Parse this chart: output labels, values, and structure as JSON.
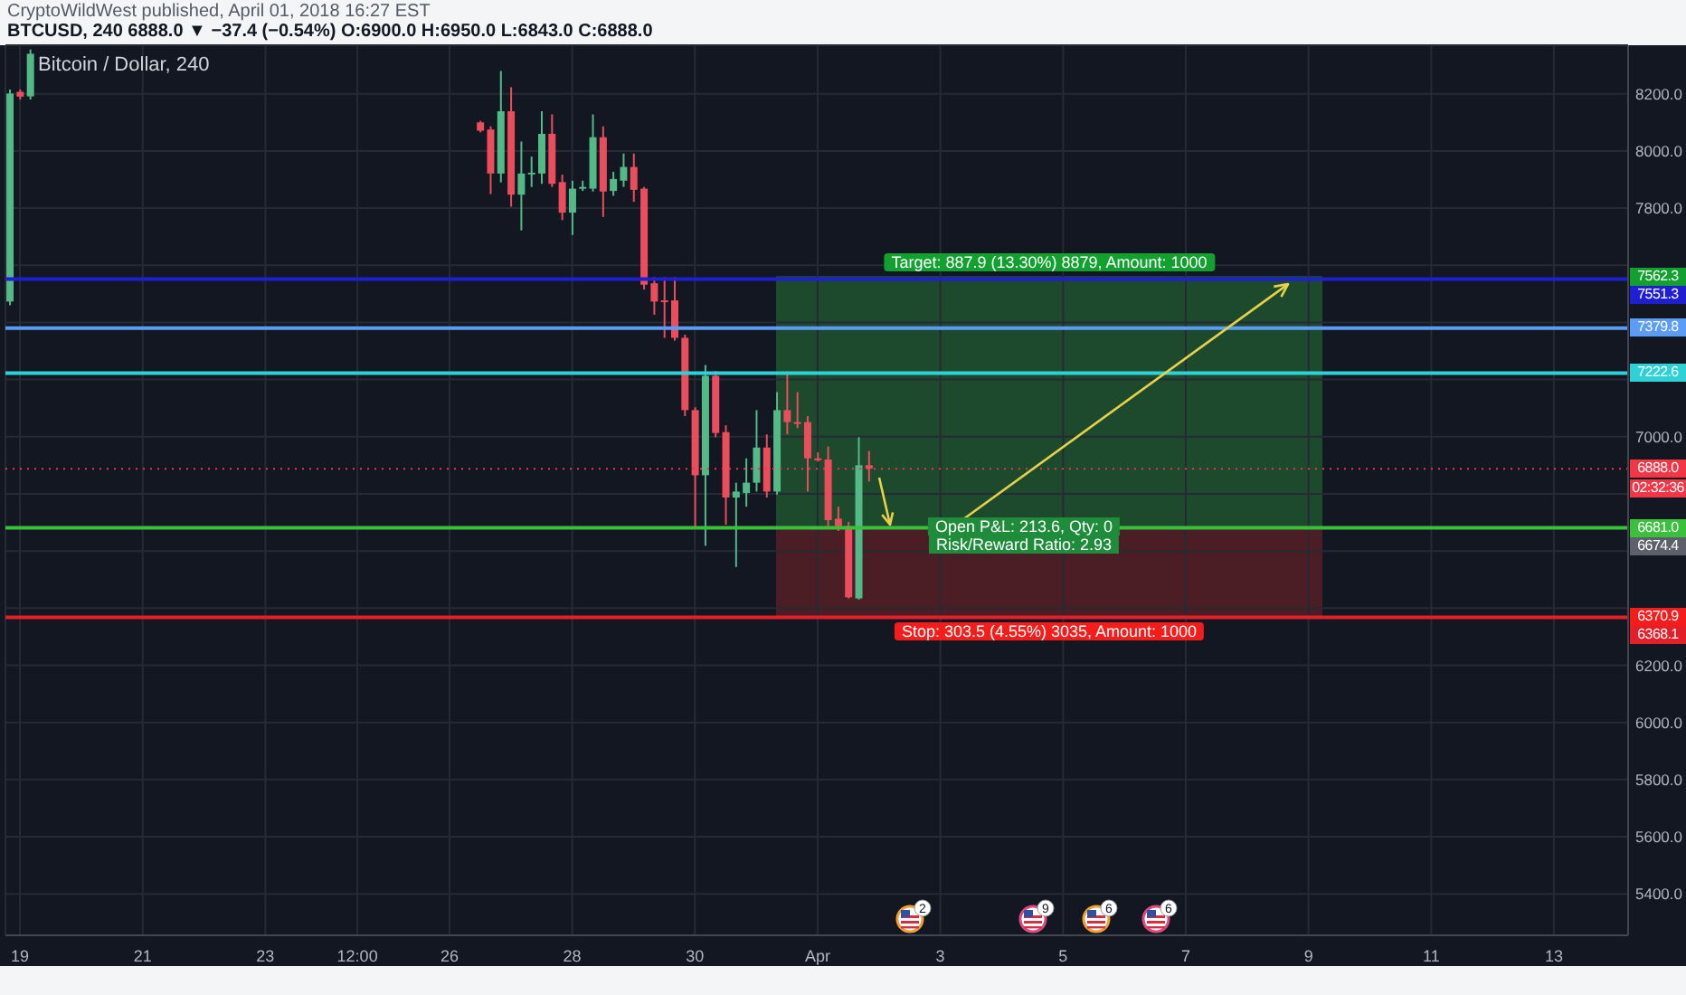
{
  "chart_data": {
    "type": "candlestick",
    "title": "Bitcoin / Dollar, 240",
    "subtitle": "BTCUSD, 240 6888.0 ▼ −37.4 (−0.54%) O:6900.0 H:6950.0 L:6843.0 C:6888.0",
    "annotations": [
      "CryptoWildWest published, April 01, 2018 16:27 EST",
      {
        "text": "Open P&L: 213.6, Qty: 0",
        "x": "2018-04-08T16:00",
        "y": 7534
      },
      "Risk/Reward Ratio: 2.93",
      "2",
      "9",
      "6",
      "6",
      {
        "text": "7562.3",
        "y": 7562.3
      },
      {
        "text": "6674.4",
        "y": 6674.4
      },
      {
        "text": "6370.9",
        "y": 6370.9
      },
      {
        "text": "02:32:36",
        "y": 6888
      }
    ],
    "x": [
      "2018-03-18T20:00",
      "2018-03-19T00:00",
      "2018-03-19T04:00",
      "2018-03-26T12:00",
      "2018-03-26T16:00",
      "2018-03-26T20:00",
      "2018-03-27T00:00",
      "2018-03-27T04:00",
      "2018-03-27T08:00",
      "2018-03-27T12:00",
      "2018-03-27T16:00",
      "2018-03-27T20:00",
      "2018-03-28T00:00",
      "2018-03-28T04:00",
      "2018-03-28T08:00",
      "2018-03-28T12:00",
      "2018-03-28T16:00",
      "2018-03-28T20:00",
      "2018-03-29T00:00",
      "2018-03-29T04:00",
      "2018-03-29T08:00",
      "2018-03-29T12:00",
      "2018-03-29T16:00",
      "2018-03-29T20:00",
      "2018-03-30T00:00",
      "2018-03-30T04:00",
      "2018-03-30T08:00",
      "2018-03-30T12:00",
      "2018-03-30T16:00",
      "2018-03-30T20:00",
      "2018-03-31T00:00",
      "2018-03-31T04:00",
      "2018-03-31T08:00",
      "2018-03-31T12:00",
      "2018-03-31T16:00",
      "2018-03-31T20:00",
      "2018-04-01T00:00",
      "2018-04-01T04:00",
      "2018-04-01T08:00",
      "2018-04-01T12:00",
      "2018-04-01T16:00",
      "2018-04-01T20:00"
    ],
    "ohlc": [
      [
        7473,
        8215,
        7460,
        8201
      ],
      [
        8207,
        8215,
        8180,
        8190
      ],
      [
        8191,
        8355,
        8180,
        8340
      ],
      [
        8100,
        8105,
        8065,
        8071
      ],
      [
        8075,
        8086,
        7849,
        7921
      ],
      [
        7921,
        8280,
        7890,
        8139
      ],
      [
        8139,
        8223,
        7805,
        7847
      ],
      [
        7847,
        8033,
        7722,
        7921
      ],
      [
        7918,
        7980,
        7874,
        7924
      ],
      [
        7921,
        8139,
        7885,
        8060
      ],
      [
        8060,
        8128,
        7874,
        7885
      ],
      [
        7891,
        7917,
        7758,
        7784
      ],
      [
        7784,
        7896,
        7706,
        7868
      ],
      [
        7868,
        7896,
        7860,
        7874
      ],
      [
        7868,
        8128,
        7858,
        8048
      ],
      [
        8048,
        8086,
        7769,
        7858
      ],
      [
        7860,
        7927,
        7843,
        7902
      ],
      [
        7896,
        7991,
        7874,
        7944
      ],
      [
        7944,
        7991,
        7822,
        7864
      ],
      [
        7868,
        7874,
        7515,
        7532
      ],
      [
        7537,
        7558,
        7427,
        7473
      ],
      [
        7477,
        7558,
        7346,
        7471
      ],
      [
        7477,
        7558,
        7336,
        7346
      ],
      [
        7346,
        7357,
        7072,
        7093
      ],
      [
        7093,
        7103,
        6681,
        6865
      ],
      [
        6865,
        7251,
        6618,
        7213
      ],
      [
        7213,
        7230,
        6998,
        7013
      ],
      [
        7016,
        7040,
        6692,
        6787
      ],
      [
        6787,
        6839,
        6544,
        6808
      ],
      [
        6803,
        6924,
        6755,
        6839
      ],
      [
        6839,
        7093,
        6808,
        6962
      ],
      [
        6962,
        7008,
        6787,
        6808
      ],
      [
        6808,
        7156,
        6797,
        7093
      ],
      [
        7093,
        7220,
        7008,
        7051
      ],
      [
        7051,
        7156,
        7030,
        7048
      ],
      [
        7051,
        7072,
        6808,
        6924
      ],
      [
        6924,
        6945,
        6913,
        6920
      ],
      [
        6920,
        6966,
        6685,
        6708
      ],
      [
        6713,
        6755,
        6670,
        6687
      ],
      [
        6687,
        6702,
        6434,
        6438
      ],
      [
        6434,
        6998,
        6430,
        6900
      ],
      [
        6900,
        6950,
        6843,
        6888
      ]
    ],
    "colors": [
      "#53b987",
      "#eb4d5c",
      "#53b987",
      "#eb4d5c",
      "#eb4d5c",
      "#53b987",
      "#eb4d5c",
      "#53b987",
      "#53b987",
      "#53b987",
      "#eb4d5c",
      "#eb4d5c",
      "#53b987",
      "#53b987",
      "#53b987",
      "#eb4d5c",
      "#53b987",
      "#53b987",
      "#eb4d5c",
      "#eb4d5c",
      "#eb4d5c",
      "#eb4d5c",
      "#eb4d5c",
      "#eb4d5c",
      "#eb4d5c",
      "#53b987",
      "#eb4d5c",
      "#eb4d5c",
      "#53b987",
      "#53b987",
      "#53b987",
      "#eb4d5c",
      "#53b987",
      "#eb4d5c",
      "#eb4d5c",
      "#eb4d5c",
      "#eb4d5c",
      "#eb4d5c",
      "#eb4d5c",
      "#eb4d5c",
      "#53b987",
      "#eb4d5c"
    ],
    "bands": [
      {
        "axis": "y",
        "from": 6674.4,
        "to": 7562.3,
        "label": "Target: 887.9 (13.30%) 8879, Amount: 1000",
        "color": "#1d4a2c"
      },
      {
        "axis": "y",
        "from": 6370.9,
        "to": 6674.4,
        "label": "Stop: 303.5 (4.55%) 3035, Amount: 1000",
        "color": "#4b1d25"
      }
    ],
    "ref_lines": [
      {
        "axis": "y",
        "value": 7551.3,
        "label": "7551.3",
        "color": "#1f1fd1"
      },
      {
        "axis": "y",
        "value": 7379.8,
        "label": "7379.8",
        "color": "#5b9cf6"
      },
      {
        "axis": "y",
        "value": 7222.6,
        "label": "7222.6",
        "color": "#2ed1d6"
      },
      {
        "axis": "y",
        "value": 6888.0,
        "label": "6888.0",
        "color": "#f23645",
        "line_style": "dotted"
      },
      {
        "axis": "y",
        "value": 6681.0,
        "label": "6681.0",
        "color": "#3bc03b"
      },
      {
        "axis": "y",
        "value": 6368.1,
        "label": "6368.1",
        "color": "#e3202a"
      }
    ],
    "xlim": [
      "2018-03-18T18:20",
      "2018-04-14T05:00"
    ],
    "xticks": [
      {
        "value": "2018-03-19",
        "label": "19"
      },
      {
        "value": "2018-03-21",
        "label": "21"
      },
      {
        "value": "2018-03-23",
        "label": "23"
      },
      {
        "value": "2018-03-24T12:00",
        "label": "12:00"
      },
      {
        "value": "2018-03-26",
        "label": "26"
      },
      {
        "value": "2018-03-28",
        "label": "28"
      },
      {
        "value": "2018-03-30",
        "label": "30"
      },
      {
        "value": "2018-04-01",
        "label": "Apr"
      },
      {
        "value": "2018-04-03",
        "label": "3"
      },
      {
        "value": "2018-04-05",
        "label": "5"
      },
      {
        "value": "2018-04-07",
        "label": "7"
      },
      {
        "value": "2018-04-09",
        "label": "9"
      },
      {
        "value": "2018-04-11",
        "label": "11"
      },
      {
        "value": "2018-04-13",
        "label": "13"
      }
    ],
    "ylim": [
      5255,
      8370
    ],
    "yticks": [
      {
        "value": 5400,
        "label": "5400.0"
      },
      {
        "value": 5600,
        "label": "5600.0"
      },
      {
        "value": 5800,
        "label": "5800.0"
      },
      {
        "value": 6000,
        "label": "6000.0"
      },
      {
        "value": 6200,
        "label": "6200.0"
      },
      {
        "value": 6400,
        "label": null
      },
      {
        "value": 6600,
        "label": null
      },
      {
        "value": 6800,
        "label": null
      },
      {
        "value": 7000,
        "label": "7000.0"
      },
      {
        "value": 7200,
        "label": null
      },
      {
        "value": 7400,
        "label": null
      },
      {
        "value": 7600,
        "label": null
      },
      {
        "value": 7800,
        "label": "7800.0"
      },
      {
        "value": 8000,
        "label": "8000.0"
      },
      {
        "value": 8200,
        "label": "8200.0"
      }
    ],
    "grid": true
  }
}
